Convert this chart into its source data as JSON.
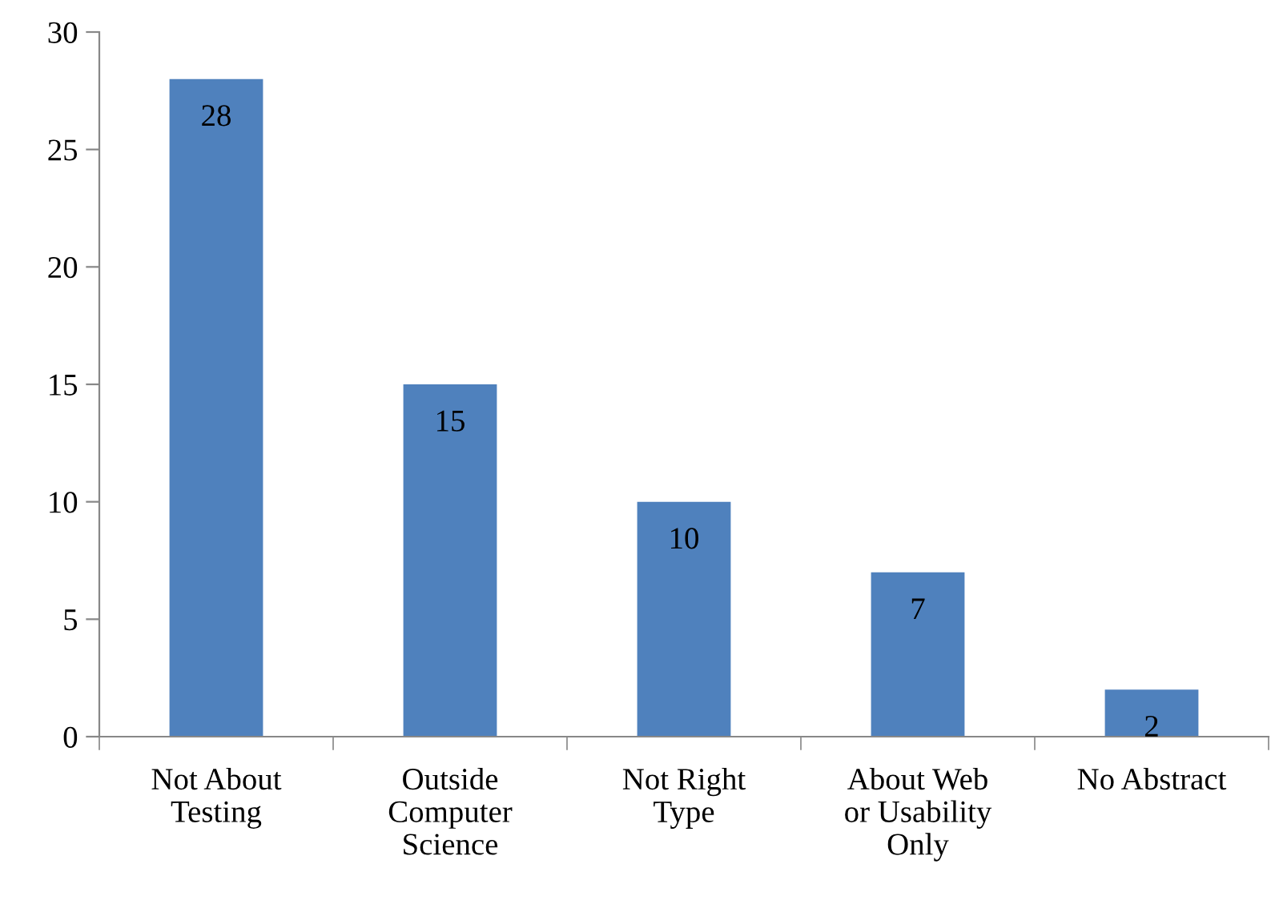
{
  "chart_data": {
    "type": "bar",
    "categories": [
      "Not About\nTesting",
      "Outside\nComputer\nScience",
      "Not Right\nType",
      "About Web\nor Usability\nOnly",
      "No Abstract"
    ],
    "values": [
      28,
      15,
      10,
      7,
      2
    ],
    "color": "#4f81bd",
    "ylim": [
      0,
      30
    ],
    "yticks": [
      0,
      5,
      10,
      15,
      20,
      25,
      30
    ],
    "data_labels": true,
    "grid": false,
    "legend": false
  }
}
